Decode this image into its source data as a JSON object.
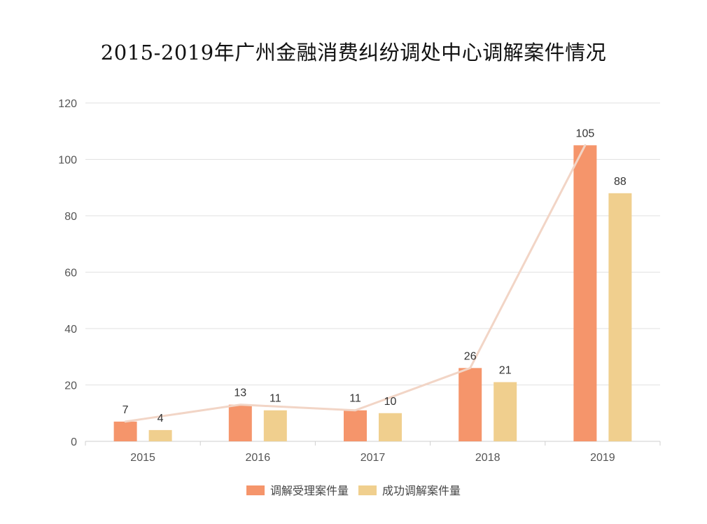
{
  "chart_data": {
    "type": "bar",
    "title": "2015-2019年广州金融消费纠纷调处中心调解案件情况",
    "categories": [
      "2015",
      "2016",
      "2017",
      "2018",
      "2019"
    ],
    "series": [
      {
        "name": "调解受理案件量",
        "values": [
          7,
          13,
          11,
          26,
          105
        ],
        "color": "#F5956B"
      },
      {
        "name": "成功调解案件量",
        "values": [
          4,
          11,
          10,
          21,
          88
        ],
        "color": "#F0CF8E"
      }
    ],
    "trend_line": {
      "series_index": 0,
      "color": "#F2D5C6"
    },
    "ylim": [
      0,
      120
    ],
    "yticks": [
      0,
      20,
      40,
      60,
      80,
      100,
      120
    ],
    "xlabel": "",
    "ylabel": "",
    "grid": true,
    "legend_position": "bottom"
  }
}
